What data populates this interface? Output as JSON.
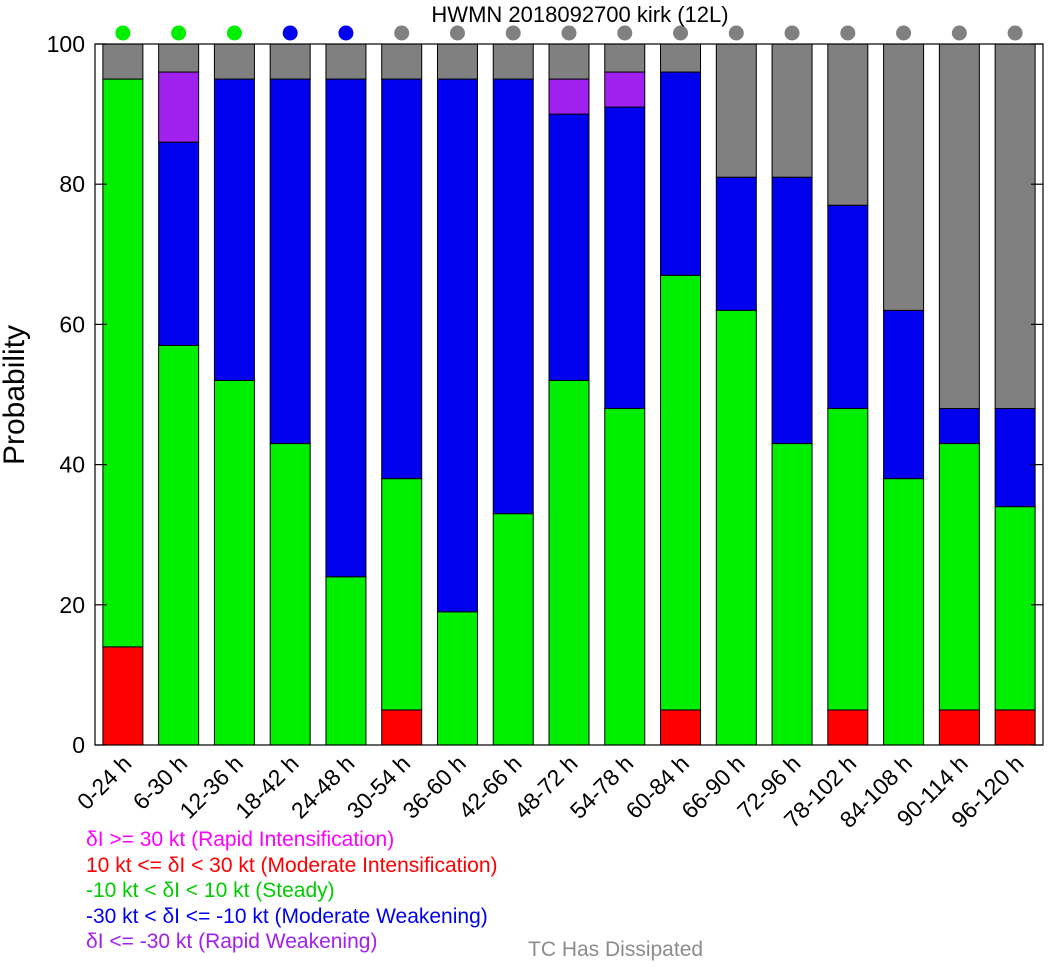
{
  "chart_data": {
    "type": "bar",
    "stacked": true,
    "title": "HWMN 2018092700 kirk (12L)",
    "xlabel": "",
    "ylabel": "Probability",
    "ylim": [
      0,
      100
    ],
    "yticks": [
      "0",
      "20",
      "40",
      "60",
      "80",
      "100"
    ],
    "grid": false,
    "legend_placement": "bottom-left",
    "categories": [
      "0-24 h",
      "6-30 h",
      "12-36 h",
      "18-42 h",
      "24-48 h",
      "30-54 h",
      "36-60 h",
      "42-66 h",
      "48-72 h",
      "54-78 h",
      "60-84 h",
      "66-90 h",
      "72-96 h",
      "78-102 h",
      "84-108 h",
      "90-114 h",
      "96-120 h"
    ],
    "series": [
      {
        "key": "moderate_intensification",
        "color": "#ff0000",
        "values": [
          14,
          0,
          0,
          0,
          0,
          5,
          0,
          0,
          0,
          0,
          5,
          0,
          0,
          5,
          0,
          5,
          5
        ]
      },
      {
        "key": "steady",
        "color": "#00ee00",
        "values": [
          81,
          57,
          52,
          43,
          24,
          33,
          19,
          33,
          52,
          48,
          62,
          62,
          43,
          43,
          38,
          38,
          29
        ]
      },
      {
        "key": "moderate_weakening",
        "color": "#0000ee",
        "values": [
          0,
          29,
          43,
          52,
          71,
          57,
          76,
          62,
          38,
          43,
          29,
          19,
          38,
          29,
          24,
          5,
          14
        ]
      },
      {
        "key": "rapid_intensification",
        "color": "#a020f0",
        "values": [
          0,
          10,
          0,
          0,
          0,
          0,
          0,
          0,
          5,
          5,
          0,
          0,
          0,
          0,
          0,
          0,
          0
        ]
      },
      {
        "key": "tc_dissipated",
        "color": "#808080",
        "values": [
          5,
          4,
          5,
          5,
          5,
          5,
          5,
          5,
          5,
          4,
          4,
          19,
          19,
          23,
          38,
          52,
          52
        ]
      }
    ],
    "top_markers": [
      "#00ee00",
      "#00ee00",
      "#00ee00",
      "#0000ee",
      "#0000ee",
      "#808080",
      "#808080",
      "#808080",
      "#808080",
      "#808080",
      "#808080",
      "#808080",
      "#808080",
      "#808080",
      "#808080",
      "#808080",
      "#808080"
    ]
  },
  "legend": {
    "items": [
      {
        "text": "δI >= 30 kt (Rapid Intensification)",
        "color": "#ff00ff"
      },
      {
        "text": "10 kt <= δI < 30 kt (Moderate Intensification)",
        "color": "#ff0000"
      },
      {
        "text": "-10 kt < δI < 10 kt (Steady)",
        "color": "#00cc00"
      },
      {
        "text": "-30 kt < δI <= -10 kt (Moderate Weakening)",
        "color": "#0000ee"
      },
      {
        "text": "δI <= -30 kt (Rapid Weakening)",
        "color": "#a020f0"
      }
    ],
    "dissipated": {
      "text": "TC Has Dissipated",
      "color": "#8c8c8c"
    }
  }
}
